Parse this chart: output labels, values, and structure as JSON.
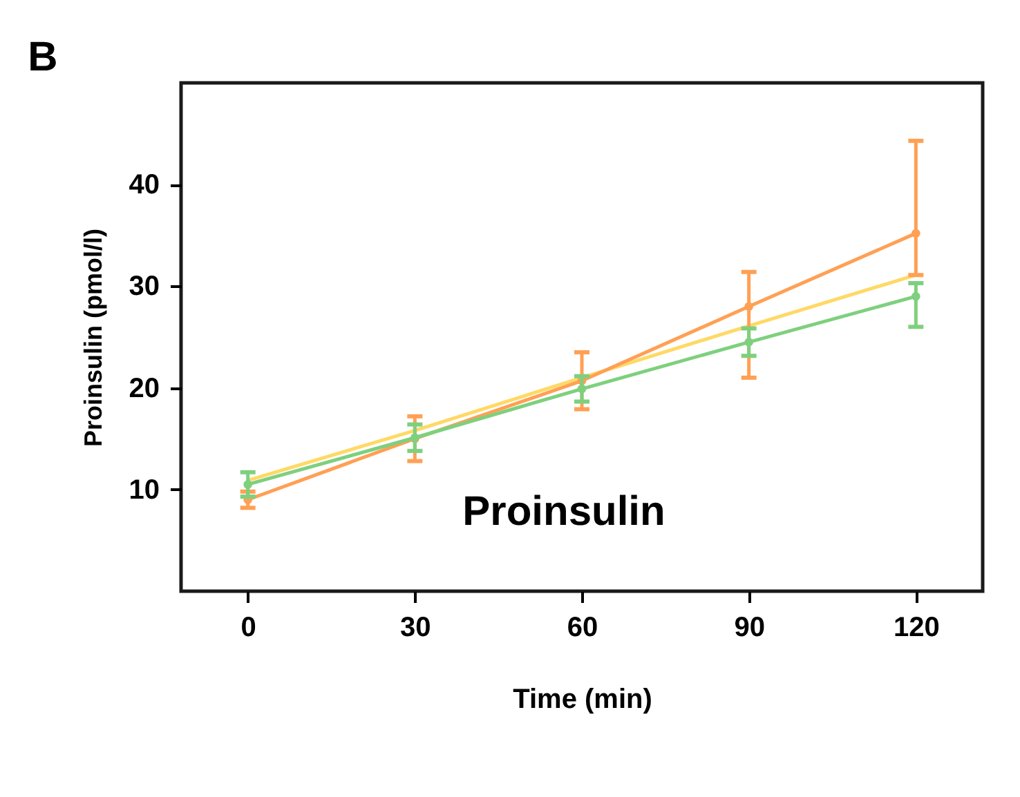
{
  "chart_data": {
    "type": "line",
    "xlabel": "Time (min)",
    "ylabel": "Proinsulin (pmol/l)",
    "annotations": [
      "B",
      "Proinsulin"
    ],
    "x": [
      0,
      30,
      60,
      90,
      120
    ],
    "xlim": [
      -12,
      132
    ],
    "xticks": [
      0,
      30,
      60,
      90,
      120
    ],
    "ylim": [
      0,
      50
    ],
    "yticks": [
      10,
      20,
      30,
      40
    ],
    "grid": false,
    "line_style": "solid",
    "series": [
      {
        "color": "#ffd966",
        "marker": "none",
        "values": [
          10.9,
          15.8,
          21.0,
          26.1,
          31.1
        ]
      },
      {
        "color": "#ffa054",
        "marker": "circle",
        "values": [
          9.0,
          15.0,
          20.7,
          28.0,
          35.2
        ],
        "errors": [
          0.8,
          2.2,
          2.8,
          [
            21.0,
            31.4
          ],
          [
            31.1,
            44.3
          ]
        ]
      },
      {
        "color": "#7ed07e",
        "marker": "circle",
        "values": [
          10.5,
          15.1,
          19.9,
          24.5,
          29.0
        ],
        "errors": [
          1.2,
          1.3,
          1.25,
          1.35,
          [
            26.0,
            30.3
          ]
        ]
      }
    ]
  }
}
